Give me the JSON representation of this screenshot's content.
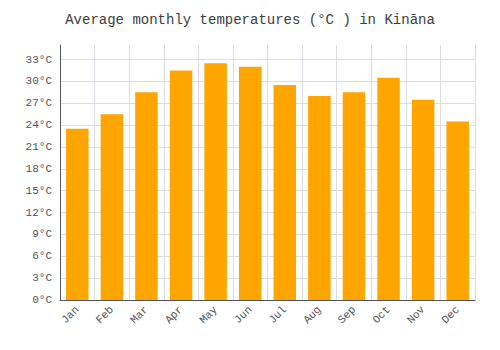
{
  "chart_data": {
    "type": "bar",
    "title": "Average monthly temperatures (°C ) in Kināna",
    "categories": [
      "Jan",
      "Feb",
      "Mar",
      "Apr",
      "May",
      "Jun",
      "Jul",
      "Aug",
      "Sep",
      "Oct",
      "Nov",
      "Dec"
    ],
    "values": [
      23.5,
      25.5,
      28.5,
      31.5,
      32.5,
      32.0,
      29.5,
      28.0,
      28.5,
      30.5,
      27.5,
      24.5
    ],
    "color": "#FFA500",
    "ylim": [
      0,
      35
    ],
    "yticks": [
      {
        "value": 0,
        "label": "0°C"
      },
      {
        "value": 3,
        "label": "3°C"
      },
      {
        "value": 6,
        "label": "6°C"
      },
      {
        "value": 9,
        "label": "9°C"
      },
      {
        "value": 12,
        "label": "12°C"
      },
      {
        "value": 15,
        "label": "15°C"
      },
      {
        "value": 18,
        "label": "18°C"
      },
      {
        "value": 21,
        "label": "21°C"
      },
      {
        "value": 24,
        "label": "24°C"
      },
      {
        "value": 27,
        "label": "27°C"
      },
      {
        "value": 30,
        "label": "30°C"
      },
      {
        "value": 33,
        "label": "33°C"
      }
    ],
    "grid": true
  }
}
